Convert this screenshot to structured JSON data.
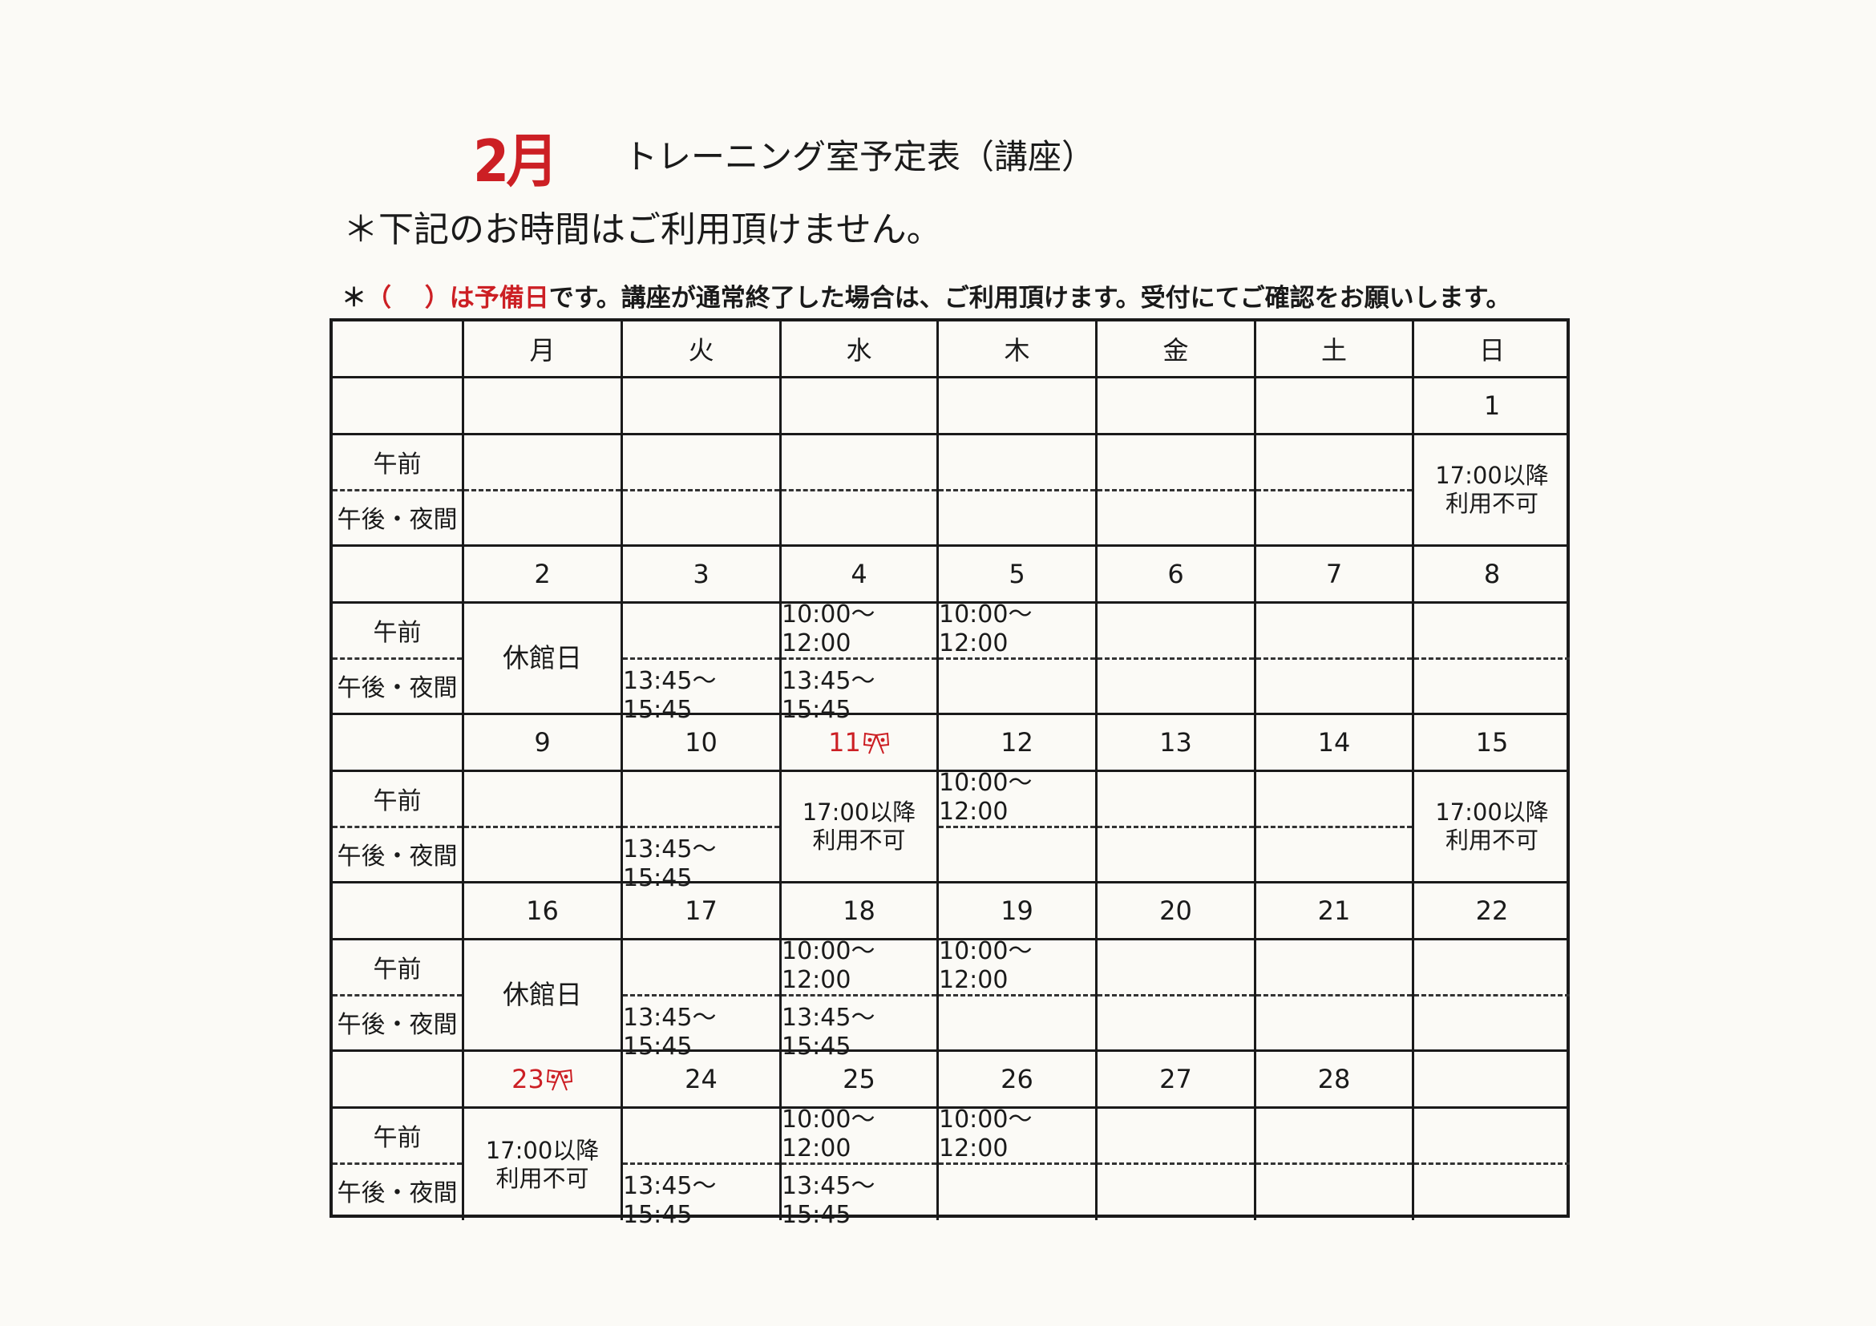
{
  "header": {
    "month": "2月",
    "title": "トレーニング室予定表（講座）",
    "notice": "＊下記のお時間はご利用頂けません。",
    "note_prefix": "＊",
    "note_red": "（　 ）は予備日",
    "note_rest": "です。講座が通常終了した場合は、ご利用頂けます。受付にてご確認をお願いします。"
  },
  "colors": {
    "accent_red": "#cc1f24",
    "ink": "#1a1a1a"
  },
  "table": {
    "weekdays": [
      "",
      "月",
      "火",
      "水",
      "木",
      "金",
      "土",
      "日"
    ],
    "row_labels": {
      "am": "午前",
      "pm": "午後・夜間"
    },
    "holiday_icon": "crossed-flags-icon",
    "weeks": [
      {
        "days": [
          "",
          "",
          "",
          "",
          "",
          "",
          "1"
        ],
        "holidays": [],
        "cells": [
          {},
          {},
          {},
          {},
          {},
          {},
          {
            "merged": "17:00以降\n利用不可"
          }
        ]
      },
      {
        "days": [
          "2",
          "3",
          "4",
          "5",
          "6",
          "7",
          "8"
        ],
        "holidays": [],
        "cells": [
          {
            "merged": "休館日"
          },
          {
            "pm": "13:45～15:45"
          },
          {
            "am": "10:00～12:00",
            "pm": "13:45～15:45"
          },
          {
            "am": "10:00～12:00"
          },
          {},
          {},
          {}
        ]
      },
      {
        "days": [
          "9",
          "10",
          "11",
          "12",
          "13",
          "14",
          "15"
        ],
        "holidays": [
          2
        ],
        "cells": [
          {},
          {
            "pm": "13:45～15:45"
          },
          {
            "merged": "17:00以降\n利用不可"
          },
          {
            "am": "10:00～12:00"
          },
          {},
          {},
          {
            "merged": "17:00以降\n利用不可"
          }
        ]
      },
      {
        "days": [
          "16",
          "17",
          "18",
          "19",
          "20",
          "21",
          "22"
        ],
        "holidays": [],
        "cells": [
          {
            "merged": "休館日"
          },
          {
            "pm": "13:45～15:45"
          },
          {
            "am": "10:00～12:00",
            "pm": "13:45～15:45"
          },
          {
            "am": "10:00～12:00"
          },
          {},
          {},
          {}
        ]
      },
      {
        "days": [
          "23",
          "24",
          "25",
          "26",
          "27",
          "28",
          ""
        ],
        "holidays": [
          0
        ],
        "cells": [
          {
            "merged": "17:00以降\n利用不可"
          },
          {
            "pm": "13:45～15:45"
          },
          {
            "am": "10:00～12:00",
            "pm": "13:45～15:45"
          },
          {
            "am": "10:00～12:00"
          },
          {},
          {},
          {}
        ]
      }
    ]
  }
}
